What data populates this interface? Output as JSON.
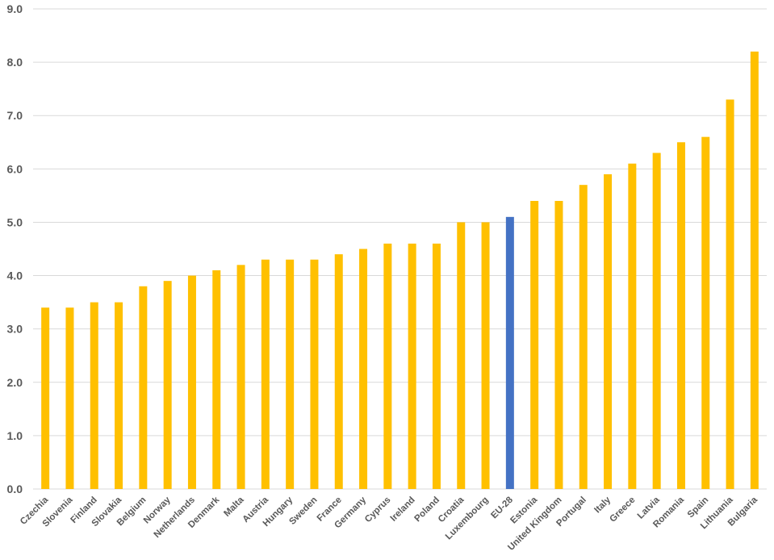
{
  "chart_data": {
    "type": "bar",
    "title": "",
    "xlabel": "",
    "ylabel": "",
    "ylim": [
      0,
      9
    ],
    "yticks": [
      "0.0",
      "1.0",
      "2.0",
      "3.0",
      "4.0",
      "5.0",
      "6.0",
      "7.0",
      "8.0",
      "9.0"
    ],
    "grid": true,
    "categories": [
      "Czechia",
      "Slovenia",
      "Finland",
      "Slovakia",
      "Belgium",
      "Norway",
      "Netherlands",
      "Denmark",
      "Malta",
      "Austria",
      "Hungary",
      "Sweden",
      "France",
      "Germany",
      "Cyprus",
      "Ireland",
      "Poland",
      "Croatia",
      "Luxembourg",
      "EU-28",
      "Estonia",
      "United Kingdom",
      "Portugal",
      "Italy",
      "Greece",
      "Latvia",
      "Romania",
      "Spain",
      "Lithuania",
      "Bulgaria"
    ],
    "values": [
      3.4,
      3.4,
      3.5,
      3.5,
      3.8,
      3.9,
      4.0,
      4.1,
      4.2,
      4.3,
      4.3,
      4.3,
      4.4,
      4.5,
      4.6,
      4.6,
      4.6,
      5.0,
      5.0,
      5.1,
      5.4,
      5.4,
      5.7,
      5.9,
      6.1,
      6.3,
      6.5,
      6.6,
      7.3,
      8.2
    ],
    "highlight": "EU-28",
    "colors": {
      "bar": "#FFC000",
      "highlight": "#4472C4",
      "grid": "#D9D9D9"
    }
  }
}
